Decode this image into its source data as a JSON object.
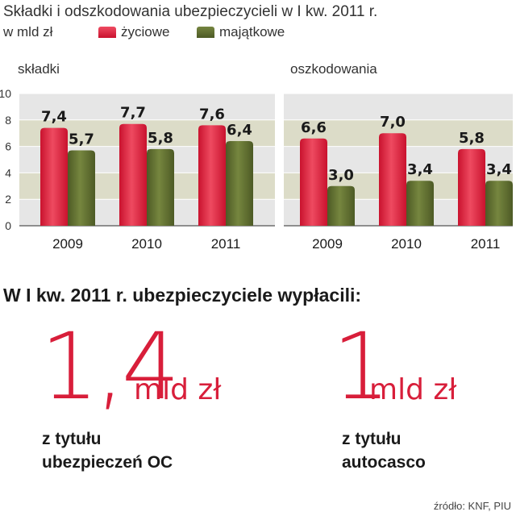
{
  "header": {
    "title": "Składki i odszkodowania ubezpieczycieli w I kw. 2011 r.",
    "unit": "w mld zł"
  },
  "legend": {
    "life": "życiowe",
    "property": "majątkowe"
  },
  "colors": {
    "life": "#d81e3a",
    "property": "#5c6b2f",
    "panel": "#e6e6e6",
    "band": "#d8d8be",
    "big_text": "#d81e3a"
  },
  "chart_data": [
    {
      "type": "bar",
      "title": "składki",
      "categories": [
        "2009",
        "2010",
        "2011"
      ],
      "series": [
        {
          "name": "życiowe",
          "values": [
            7.4,
            7.7,
            7.6
          ],
          "labels": [
            "7,4",
            "7,7",
            "7,6"
          ]
        },
        {
          "name": "majątkowe",
          "values": [
            5.7,
            5.8,
            6.4
          ],
          "labels": [
            "5,7",
            "5,8",
            "6,4"
          ]
        }
      ],
      "ylim": [
        0,
        10
      ],
      "yticks": [
        "0",
        "2",
        "4",
        "6",
        "8",
        "10"
      ]
    },
    {
      "type": "bar",
      "title": "oszkodowania",
      "categories": [
        "2009",
        "2010",
        "2011"
      ],
      "series": [
        {
          "name": "życiowe",
          "values": [
            6.6,
            7.0,
            5.8
          ],
          "labels": [
            "6,6",
            "7,0",
            "5,8"
          ]
        },
        {
          "name": "majątkowe",
          "values": [
            3.0,
            3.4,
            3.4
          ],
          "labels": [
            "3,0",
            "3,4",
            "3,4"
          ]
        }
      ],
      "ylim": [
        0,
        10
      ]
    }
  ],
  "summary": {
    "heading": "W I kw. 2011 r. ubezpieczyciele wypłacili:",
    "items": [
      {
        "value": "1,4",
        "unit": "mld zł",
        "line1": "z tytułu",
        "line2": "ubezpieczeń OC"
      },
      {
        "value": "1",
        "unit": "mld zł",
        "line1": "z tytułu",
        "line2": "autocasco"
      }
    ]
  },
  "source": "źródło: KNF, PIU"
}
